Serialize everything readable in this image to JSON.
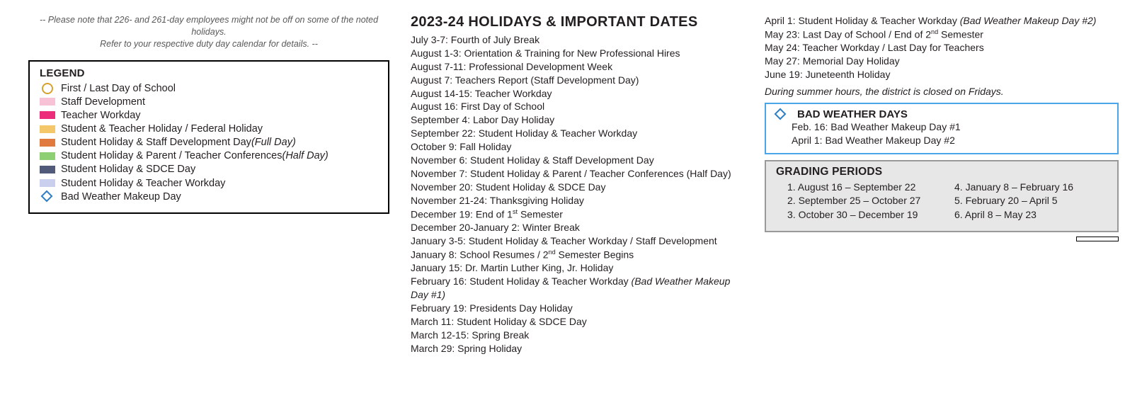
{
  "note": {
    "line1": "-- Please note that 226- and 261-day employees might not be off on some of the noted holidays.",
    "line2": "Refer to your respective duty day calendar for details. --"
  },
  "legend": {
    "title": "LEGEND",
    "items": [
      {
        "type": "circle",
        "color": "#d6a22e",
        "label": "First / Last Day of School",
        "italic_suffix": ""
      },
      {
        "type": "rect",
        "color": "#f7c2d5",
        "label": "Staff Development",
        "italic_suffix": ""
      },
      {
        "type": "rect",
        "color": "#ec2e7a",
        "label": "Teacher Workday",
        "italic_suffix": ""
      },
      {
        "type": "rect",
        "color": "#f4c86a",
        "label": "Student & Teacher Holiday / Federal Holiday",
        "italic_suffix": ""
      },
      {
        "type": "rect",
        "color": "#e07a3f",
        "label": "Student Holiday & Staff Development Day ",
        "italic_suffix": "(Full Day)"
      },
      {
        "type": "rect",
        "color": "#8fcf74",
        "label": "Student Holiday & Parent / Teacher Conferences ",
        "italic_suffix": "(Half Day)"
      },
      {
        "type": "rect",
        "color": "#525a7a",
        "label": "Student Holiday & SDCE Day",
        "italic_suffix": ""
      },
      {
        "type": "rect",
        "color": "#c9cfec",
        "label": "Student Holiday & Teacher Workday",
        "italic_suffix": ""
      },
      {
        "type": "diamond",
        "color": "#2e7ec6",
        "label": "Bad Weather Makeup Day",
        "italic_suffix": ""
      }
    ]
  },
  "holidays": {
    "title": "2023-24 HOLIDAYS & IMPORTANT DATES",
    "items_mid": [
      {
        "text": "July 3-7: Fourth of July Break"
      },
      {
        "text": "August 1-3:  Orientation & Training for New Professional Hires"
      },
      {
        "text": "August 7-11:  Professional Development Week"
      },
      {
        "text": "August 7:  Teachers Report (Staff Development Day)"
      },
      {
        "text": "August 14-15:  Teacher Workday"
      },
      {
        "text": "August 16:  First Day of School"
      },
      {
        "text": "September 4:  Labor Day Holiday"
      },
      {
        "text": "September 22: Student Holiday & Teacher Workday"
      },
      {
        "text": "October 9:  Fall Holiday"
      },
      {
        "text": "November 6:  Student Holiday & Staff Development Day"
      },
      {
        "text": "November 7: Student Holiday & Parent / Teacher Conferences (Half Day)"
      },
      {
        "text": "November 20:  Student Holiday & SDCE Day"
      },
      {
        "text": "November 21-24: Thanksgiving Holiday"
      },
      {
        "text_html": "December 19:  End of 1<sup>st</sup> Semester"
      },
      {
        "text": "December 20-January 2:  Winter Break"
      },
      {
        "text": "January 3-5:  Student Holiday & Teacher Workday / Staff Development"
      },
      {
        "text_html": "January 8:  School Resumes / 2<sup>nd</sup> Semester Begins"
      },
      {
        "text": "January 15:  Dr. Martin Luther King, Jr. Holiday"
      },
      {
        "text": "February 16: Student Holiday & Teacher Workday ",
        "italic_suffix": "(Bad Weather Makeup Day #1)"
      },
      {
        "text": "February 19:  Presidents Day Holiday"
      },
      {
        "text": "March 11:  Student Holiday & SDCE Day"
      },
      {
        "text": "March 12-15:  Spring Break"
      },
      {
        "text": "March 29:  Spring Holiday"
      }
    ],
    "items_right_top": [
      {
        "text": "April 1: Student Holiday & Teacher Workday ",
        "italic_suffix": "(Bad Weather Makeup Day #2)"
      },
      {
        "text_html": "May 23:  Last Day of School / End of 2<sup>nd</sup> Semester"
      },
      {
        "text": "May 24:  Teacher Workday / Last Day for Teachers"
      },
      {
        "text": "May 27:  Memorial Day Holiday"
      },
      {
        "text": "June 19: Juneteenth Holiday"
      }
    ],
    "summer_note": "During summer hours, the district is closed on Fridays."
  },
  "bad_weather": {
    "diamond_color": "#2e7ec6",
    "title": "BAD WEATHER DAYS",
    "items": [
      "Feb. 16:  Bad Weather Makeup Day #1",
      "April 1:  Bad Weather Makeup Day #2"
    ]
  },
  "grading": {
    "title": "GRADING PERIODS",
    "col1": [
      "1.  August 16 – September 22",
      "2.  September 25  – October 27",
      "3.  October 30 – December 19"
    ],
    "col2": [
      "4.  January 8 – February 16",
      "5.  February 20 – April 5",
      "6.  April 8 – May 23"
    ]
  }
}
